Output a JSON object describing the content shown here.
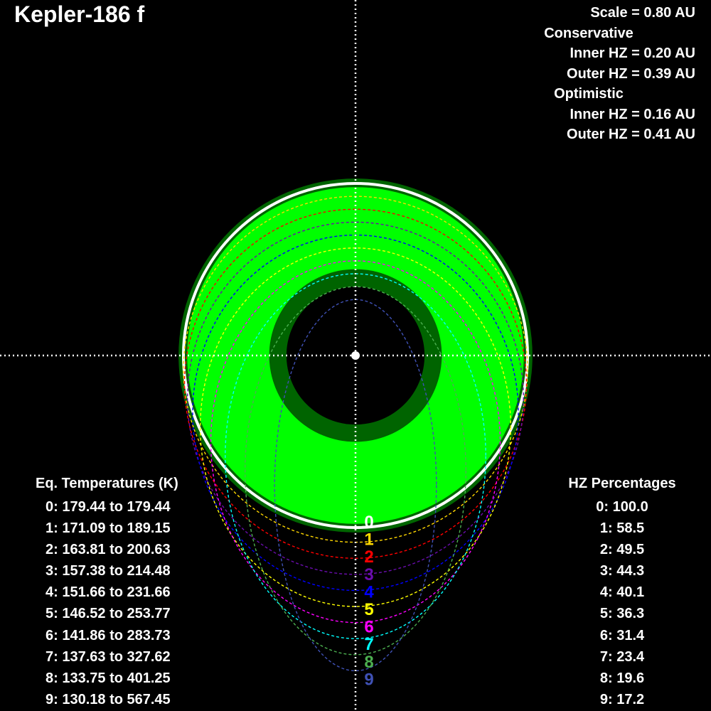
{
  "title": "Kepler-186 f",
  "info": {
    "scale": "Scale = 0.80 AU",
    "conservative_label": "Conservative",
    "cons_inner": "Inner HZ = 0.20 AU",
    "cons_outer": "Outer HZ = 0.39 AU",
    "optimistic_label": "Optimistic",
    "opt_inner": "Inner HZ = 0.16 AU",
    "opt_outer": "Outer HZ = 0.41 AU"
  },
  "colors": {
    "background": "#000000",
    "conservative_zone": "#00ff00",
    "optimistic_zone": "#006400",
    "reference_orbit": "#ffffff",
    "axis": "#ffffff"
  },
  "eq_temps": {
    "header": "Eq. Temperatures (K)",
    "rows": [
      "0: 179.44 to 179.44",
      "1: 171.09 to 189.15",
      "2: 163.81 to 200.63",
      "3: 157.38 to 214.48",
      "4: 151.66 to 231.66",
      "5: 146.52 to 253.77",
      "6: 141.86 to 283.73",
      "7: 137.63 to 327.62",
      "8: 133.75 to 401.25",
      "9: 130.18 to 567.45"
    ]
  },
  "hz_percentages": {
    "header": "HZ Percentages",
    "rows": [
      "0: 100.0",
      "1: 58.5",
      "2: 49.5",
      "3: 44.3",
      "4: 40.1",
      "5: 36.3",
      "6: 31.4",
      "7: 23.4",
      "8: 19.6",
      "9: 17.2"
    ]
  },
  "orbits": [
    {
      "label": "0",
      "eccentricity": 0.0,
      "color": "#ffffff"
    },
    {
      "label": "1",
      "eccentricity": 0.1,
      "color": "#ffd700"
    },
    {
      "label": "2",
      "eccentricity": 0.2,
      "color": "#ff0000"
    },
    {
      "label": "3",
      "eccentricity": 0.3,
      "color": "#6a0dad"
    },
    {
      "label": "4",
      "eccentricity": 0.4,
      "color": "#0000ff"
    },
    {
      "label": "5",
      "eccentricity": 0.5,
      "color": "#ffff00"
    },
    {
      "label": "6",
      "eccentricity": 0.6,
      "color": "#ff00ff"
    },
    {
      "label": "7",
      "eccentricity": 0.7,
      "color": "#00ffff"
    },
    {
      "label": "8",
      "eccentricity": 0.8,
      "color": "#4caf50"
    },
    {
      "label": "9",
      "eccentricity": 0.9,
      "color": "#3f51b5"
    }
  ]
}
